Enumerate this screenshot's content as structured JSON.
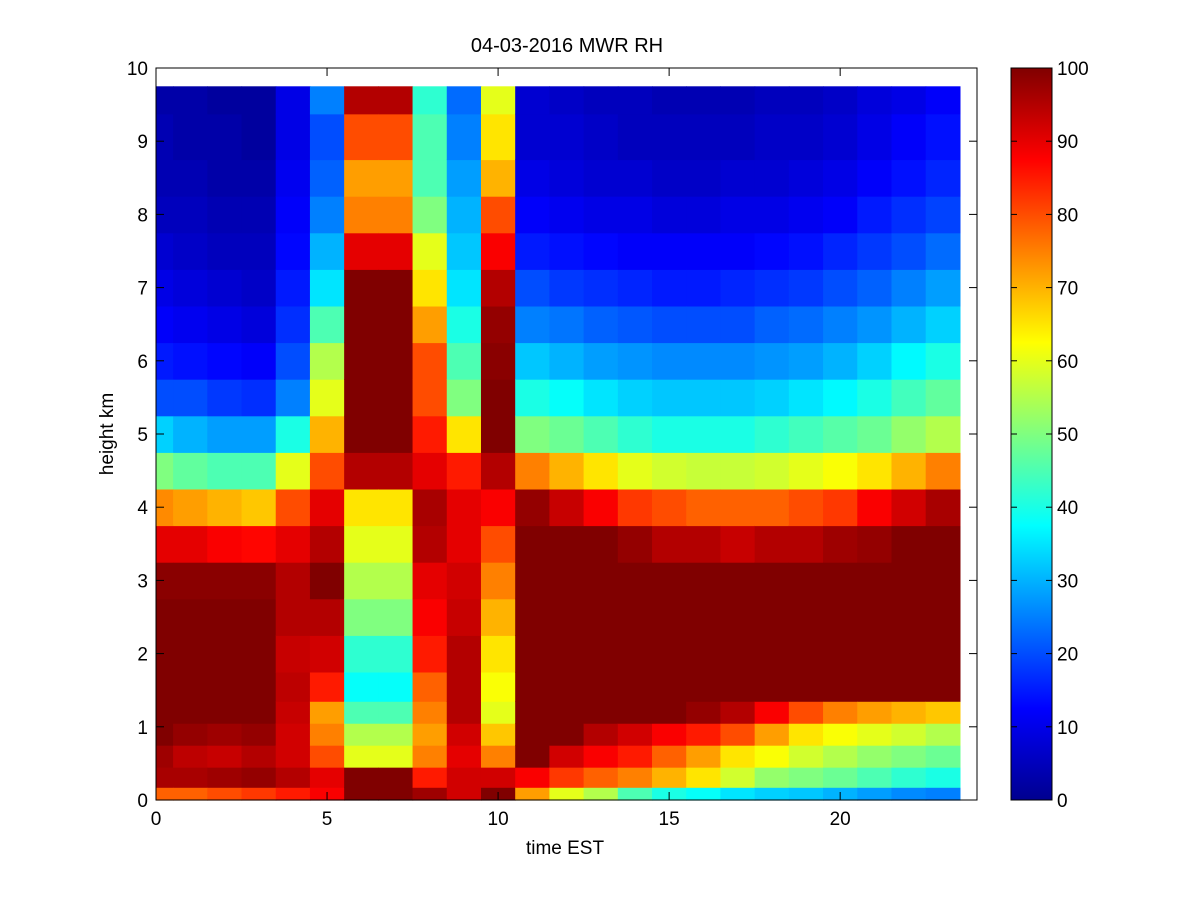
{
  "chart_data": {
    "type": "heatmap",
    "title": "04-03-2016 MWR RH",
    "xlabel": "time EST",
    "ylabel": "height km",
    "xlim": [
      0,
      24
    ],
    "ylim": [
      0,
      10
    ],
    "x_ticks": [
      0,
      5,
      10,
      15,
      20
    ],
    "y_ticks": [
      0,
      1,
      2,
      3,
      4,
      5,
      6,
      7,
      8,
      9,
      10
    ],
    "colorbar": {
      "range": [
        0,
        100
      ],
      "ticks": [
        0,
        10,
        20,
        30,
        40,
        50,
        60,
        70,
        80,
        90,
        100
      ],
      "colormap": "jet"
    },
    "x_centers": [
      0,
      1,
      2,
      3,
      4,
      5,
      6,
      7,
      8,
      9,
      10,
      11,
      12,
      13,
      14,
      15,
      16,
      17,
      18,
      19,
      20,
      21,
      22,
      23
    ],
    "cell_width_hours": 1,
    "height_levels_km": [
      0.05,
      0.3,
      0.6,
      0.9,
      1.2,
      1.5,
      2.0,
      2.5,
      3.0,
      3.5,
      4.0,
      4.5,
      5.0,
      5.5,
      6.0,
      6.5,
      7.0,
      7.5,
      8.0,
      8.5,
      9.0,
      9.75
    ],
    "rh_percent_by_column": [
      [
        78,
        96,
        97,
        100,
        100,
        100,
        100,
        100,
        99,
        90,
        74,
        50,
        33,
        20,
        15,
        12,
        10,
        8,
        6,
        5,
        5,
        4
      ],
      [
        78,
        96,
        94,
        98,
        100,
        100,
        100,
        100,
        99,
        90,
        72,
        47,
        30,
        20,
        14,
        11,
        9,
        7,
        6,
        5,
        4,
        4
      ],
      [
        80,
        97,
        93,
        97,
        100,
        100,
        100,
        100,
        99,
        88,
        70,
        45,
        28,
        18,
        13,
        10,
        8,
        6,
        5,
        4,
        4,
        3
      ],
      [
        82,
        98,
        95,
        98,
        100,
        100,
        100,
        100,
        99,
        87,
        68,
        45,
        28,
        17,
        12,
        9,
        7,
        6,
        5,
        4,
        3,
        3
      ],
      [
        85,
        95,
        92,
        92,
        93,
        94,
        93,
        95,
        95,
        90,
        80,
        60,
        40,
        25,
        20,
        17,
        15,
        13,
        12,
        11,
        10,
        10
      ],
      [
        88,
        90,
        80,
        75,
        72,
        85,
        92,
        95,
        100,
        95,
        90,
        80,
        70,
        60,
        55,
        45,
        35,
        30,
        25,
        22,
        20,
        25
      ],
      [
        100,
        100,
        60,
        55,
        45,
        38,
        42,
        50,
        55,
        60,
        65,
        95,
        100,
        100,
        100,
        100,
        100,
        90,
        75,
        72,
        80,
        95
      ],
      [
        100,
        100,
        60,
        55,
        45,
        38,
        42,
        50,
        55,
        60,
        65,
        95,
        100,
        100,
        100,
        100,
        100,
        90,
        75,
        72,
        80,
        95
      ],
      [
        97,
        85,
        75,
        72,
        75,
        78,
        85,
        88,
        90,
        95,
        96,
        90,
        85,
        80,
        80,
        72,
        65,
        60,
        50,
        45,
        45,
        42
      ],
      [
        92,
        92,
        90,
        92,
        95,
        95,
        95,
        93,
        92,
        90,
        90,
        85,
        65,
        50,
        45,
        40,
        35,
        32,
        30,
        28,
        25,
        23
      ],
      [
        100,
        92,
        75,
        68,
        60,
        62,
        65,
        70,
        75,
        80,
        88,
        95,
        100,
        100,
        99,
        98,
        95,
        88,
        80,
        70,
        65,
        60
      ],
      [
        72,
        88,
        100,
        100,
        100,
        100,
        100,
        100,
        100,
        100,
        98,
        75,
        50,
        40,
        32,
        25,
        20,
        15,
        12,
        10,
        8,
        8
      ],
      [
        60,
        82,
        92,
        100,
        100,
        100,
        100,
        100,
        100,
        100,
        93,
        70,
        48,
        38,
        30,
        24,
        18,
        14,
        11,
        9,
        8,
        7
      ],
      [
        55,
        78,
        88,
        95,
        100,
        100,
        100,
        100,
        100,
        100,
        88,
        65,
        45,
        35,
        28,
        22,
        17,
        13,
        10,
        8,
        7,
        6
      ],
      [
        45,
        75,
        85,
        92,
        100,
        100,
        100,
        100,
        100,
        98,
        82,
        60,
        42,
        33,
        27,
        21,
        16,
        12,
        10,
        8,
        6,
        6
      ],
      [
        40,
        70,
        78,
        88,
        100,
        100,
        100,
        100,
        100,
        95,
        80,
        58,
        40,
        32,
        26,
        20,
        15,
        12,
        9,
        7,
        6,
        5
      ],
      [
        38,
        65,
        72,
        85,
        98,
        100,
        100,
        100,
        100,
        95,
        78,
        57,
        40,
        32,
        26,
        20,
        15,
        12,
        9,
        7,
        6,
        5
      ],
      [
        35,
        58,
        65,
        80,
        95,
        100,
        100,
        100,
        100,
        93,
        78,
        57,
        40,
        32,
        26,
        20,
        16,
        12,
        10,
        8,
        6,
        5
      ],
      [
        33,
        52,
        62,
        72,
        88,
        100,
        100,
        100,
        100,
        95,
        78,
        58,
        42,
        33,
        27,
        22,
        17,
        13,
        10,
        8,
        7,
        6
      ],
      [
        32,
        50,
        58,
        65,
        80,
        100,
        100,
        100,
        100,
        95,
        80,
        60,
        44,
        35,
        28,
        23,
        18,
        14,
        11,
        9,
        7,
        6
      ],
      [
        30,
        48,
        55,
        62,
        75,
        100,
        100,
        100,
        100,
        97,
        82,
        62,
        46,
        37,
        30,
        25,
        20,
        16,
        12,
        10,
        8,
        7
      ],
      [
        28,
        45,
        52,
        60,
        72,
        100,
        100,
        100,
        100,
        98,
        88,
        65,
        48,
        40,
        33,
        27,
        22,
        18,
        15,
        12,
        10,
        9
      ],
      [
        26,
        42,
        50,
        58,
        70,
        100,
        100,
        100,
        100,
        100,
        92,
        70,
        52,
        44,
        37,
        30,
        25,
        20,
        17,
        14,
        12,
        10
      ],
      [
        25,
        40,
        48,
        55,
        68,
        100,
        100,
        100,
        100,
        100,
        96,
        75,
        55,
        47,
        40,
        33,
        28,
        23,
        19,
        16,
        14,
        12
      ]
    ]
  }
}
